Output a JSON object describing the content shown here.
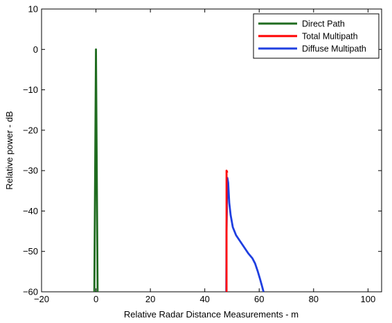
{
  "chart_data": {
    "type": "line",
    "xlabel": "Relative Radar Distance Measurements - m",
    "ylabel": "Relative power - dB",
    "xlim": [
      -20,
      105
    ],
    "ylim": [
      -60,
      10
    ],
    "xticks": [
      -20,
      0,
      20,
      40,
      60,
      80,
      100
    ],
    "yticks": [
      10,
      0,
      -10,
      -20,
      -30,
      -40,
      -50,
      -60
    ],
    "grid": false,
    "legend_position": "top-right",
    "series": [
      {
        "name": "Direct Path",
        "color": "#1f6b1f",
        "x": [
          -0.6,
          0,
          0.6
        ],
        "y": [
          -60,
          0,
          -60
        ]
      },
      {
        "name": "Total Multipath",
        "color": "#ff0000",
        "x": [
          48,
          48,
          48.3
        ],
        "y": [
          -60,
          -30,
          -30.5
        ]
      },
      {
        "name": "Diffuse Multipath",
        "color": "#1f3fe0",
        "x": [
          47.9,
          48,
          48.3,
          48.6,
          49,
          49.5,
          50.3,
          51.5,
          53,
          54.5,
          56,
          57.5,
          58.5,
          59.5,
          60.3,
          61,
          61.6
        ],
        "y": [
          -60,
          -45,
          -31.8,
          -33,
          -38,
          -41,
          -44,
          -46,
          -47.5,
          -49,
          -50.5,
          -51.7,
          -53,
          -55,
          -56.8,
          -58.5,
          -60
        ]
      }
    ]
  }
}
